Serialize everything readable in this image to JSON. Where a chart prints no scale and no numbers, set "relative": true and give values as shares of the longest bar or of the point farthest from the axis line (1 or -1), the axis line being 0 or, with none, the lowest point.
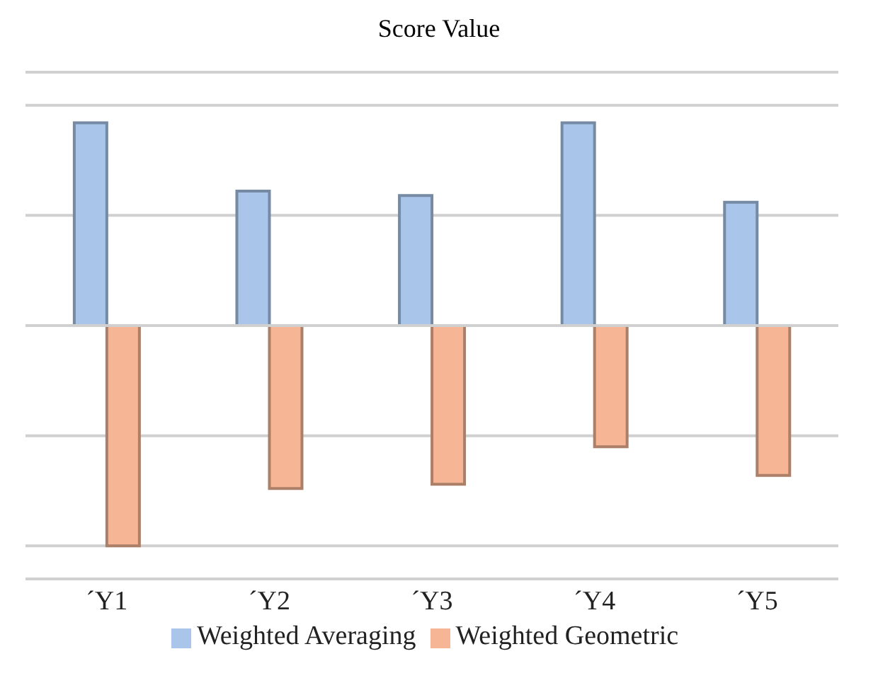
{
  "chart_data": {
    "type": "bar",
    "title": "Score Value",
    "relative": true,
    "grid": "y",
    "legend": "bottom",
    "categories": [
      "´Y1",
      "´Y2",
      "´Y3",
      "´Y4",
      "´Y5"
    ],
    "series": [
      {
        "name": "Weighted Averaging",
        "color": "#a9c5ea",
        "values": [
          0.92,
          0.61,
          0.59,
          0.92,
          0.56
        ]
      },
      {
        "name": "Weighted Geometric",
        "color": "#f6b595",
        "values": [
          -1,
          -0.74,
          -0.72,
          -0.55,
          -0.68
        ]
      }
    ]
  }
}
